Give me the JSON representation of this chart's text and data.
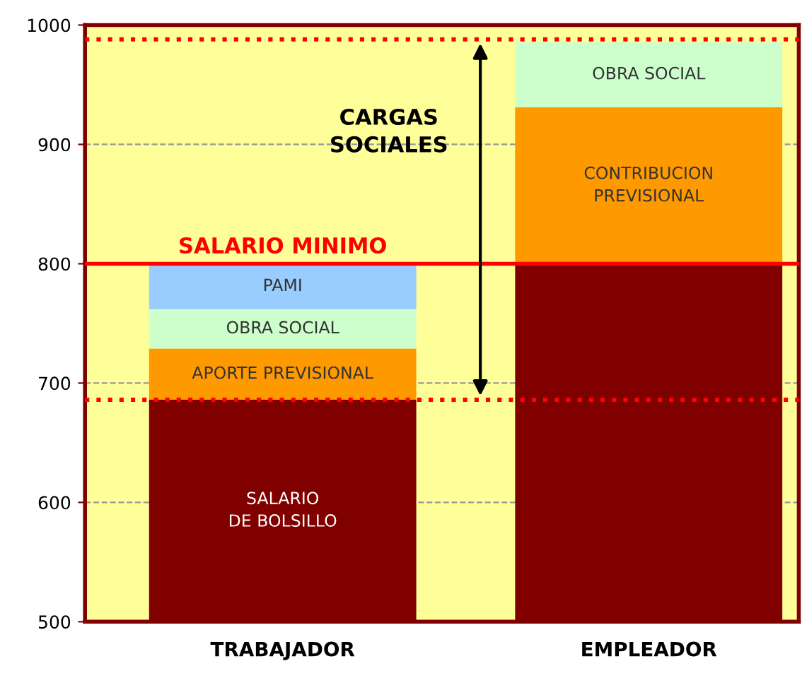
{
  "chart_data": {
    "type": "bar",
    "categories": [
      "TRABAJADOR",
      "EMPLEADOR"
    ],
    "series": [
      {
        "name": "SALARIO\nDE BOLSILLO",
        "color": "#800000",
        "base": [
          500,
          null
        ],
        "values": [
          186,
          null
        ]
      },
      {
        "color": "#800000",
        "base": [
          null,
          500
        ],
        "values": [
          null,
          300
        ]
      },
      {
        "name": "APORTE PREVISIONAL",
        "color": "#ff9900",
        "base": [
          686,
          null
        ],
        "values": [
          43,
          null
        ]
      },
      {
        "name": "CONTRIBUCION\nPREVISIONAL",
        "color": "#ff9900",
        "base": [
          null,
          800
        ],
        "values": [
          null,
          131
        ]
      },
      {
        "name": "OBRA SOCIAL",
        "color": "#ccffcc",
        "base": [
          729,
          931
        ],
        "values": [
          33,
          55
        ]
      },
      {
        "name": "PAMI",
        "color": "#99ccff",
        "base": [
          762,
          null
        ],
        "values": [
          38,
          null
        ]
      }
    ],
    "ylim": [
      500,
      1000
    ],
    "yticks": [
      500,
      600,
      700,
      800,
      900,
      1000
    ],
    "grid": "y",
    "ref_lines": [
      {
        "axis": "y",
        "value": 800,
        "label": "SALARIO MINIMO",
        "color": "#ff0000",
        "line_style": "solid"
      },
      {
        "axis": "y",
        "value": 686,
        "color": "#ff0000",
        "line_style": "dotted"
      },
      {
        "axis": "y",
        "value": 988,
        "color": "#ff0000",
        "line_style": "dotted"
      }
    ],
    "annotations": [
      "CARGAS\nSOCIALES"
    ]
  }
}
